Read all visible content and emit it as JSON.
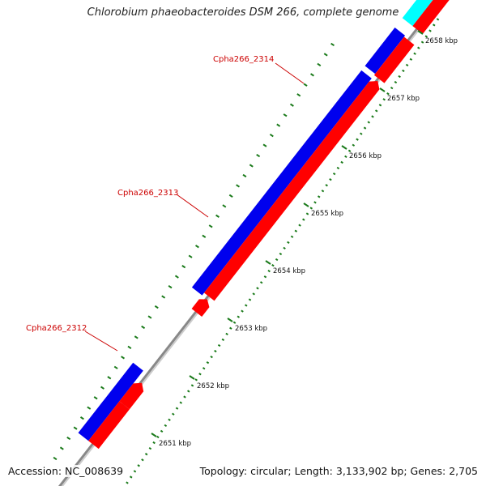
{
  "title": "Chlorobium phaeobacteroides DSM 266, complete genome",
  "footer": {
    "accession": "Accession: NC_008639",
    "summary": "Topology: circular; Length: 3,133,902 bp; Genes: 2,705"
  },
  "colors": {
    "forward_cds": "#0000ee",
    "reverse_cds": "#ff0000",
    "rna_feature": "#00ffff",
    "other_feature": "#999966",
    "backbone": "#888888",
    "tick": "#1a7a1a",
    "gene_label": "#cc0000"
  },
  "gene_labels": [
    {
      "name": "Cpha266_2314"
    },
    {
      "name": "Cpha266_2313"
    },
    {
      "name": "Cpha266_2312"
    }
  ],
  "scale": {
    "unit": "kbp",
    "ticks": [
      {
        "label": "2651 kbp"
      },
      {
        "label": "2652 kbp"
      },
      {
        "label": "2653 kbp"
      },
      {
        "label": "2654 kbp"
      },
      {
        "label": "2655 kbp"
      },
      {
        "label": "2656 kbp"
      },
      {
        "label": "2657 kbp"
      },
      {
        "label": "2658 kbp"
      }
    ]
  }
}
